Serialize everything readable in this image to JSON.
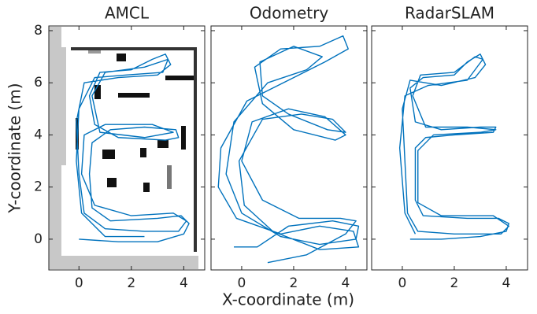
{
  "chart_data": [
    {
      "type": "line",
      "title": "AMCL",
      "ylabel": "Y-coordinate (m)",
      "xlim": [
        -1.15,
        4.8
      ],
      "ylim": [
        -1.18,
        8.18
      ],
      "xticks": [
        0,
        2,
        4
      ],
      "yticks": [
        0,
        2,
        4,
        6,
        8
      ],
      "series": [
        {
          "color": "#0072bd",
          "x": [
            0,
            1.5,
            3,
            4,
            4.2,
            3.9,
            3,
            1.2,
            0.5,
            0.4,
            0.5,
            1.2,
            2.5,
            3.7,
            3.8,
            3.3,
            1.5,
            0.6,
            0.4,
            0.8,
            2,
            2.8,
            3.3,
            3.5,
            3,
            1.5,
            0.2,
            -0.1,
            0,
            0.2,
            1,
            2.5,
            3.8,
            4.1,
            3.6,
            2,
            0.6,
            0.1,
            0.2,
            1,
            2.8,
            3.6,
            2.5,
            0.8,
            0.5,
            1,
            2.5,
            3.4,
            3.2,
            1.8,
            0.6,
            0,
            -0.1,
            0.1,
            1,
            2.5
          ],
          "y": [
            0,
            -0.1,
            -0.1,
            0.2,
            0.6,
            0.9,
            0.8,
            0.7,
            1.2,
            2.5,
            3.7,
            4.2,
            4.3,
            4.2,
            3.9,
            3.8,
            3.9,
            4.4,
            5.5,
            6.4,
            6.5,
            6.9,
            7.1,
            6.7,
            6.3,
            6.2,
            6,
            4.5,
            2.5,
            1,
            0.4,
            0.3,
            0.3,
            0.7,
            1,
            0.9,
            1.3,
            2.5,
            4,
            4.4,
            4.4,
            4.1,
            3.9,
            4.1,
            5.5,
            6.4,
            6.6,
            6.9,
            6.4,
            6.3,
            6.2,
            5,
            3,
            1,
            0.1,
            0.1
          ]
        }
      ]
    },
    {
      "type": "line",
      "title": "Odometry",
      "xlabel": "X-coordinate (m)",
      "xlim": [
        -1.18,
        4.82
      ],
      "ylim": [
        -1.18,
        8.18
      ],
      "xticks": [
        0,
        2,
        4
      ],
      "yticks": [
        0,
        2,
        4,
        6,
        8
      ],
      "series": [
        {
          "color": "#0072bd",
          "x": [
            1,
            2.5,
            4,
            4.4,
            3.8,
            2.2,
            0.8,
            0,
            0.4,
            1.8,
            3.2,
            4,
            3.6,
            2,
            0.8,
            0.5,
            1.5,
            3,
            3.9,
            4.1,
            3.2,
            2,
            0.2,
            -0.8,
            -0.9,
            -0.2,
            1.5,
            3,
            4.3,
            4.5,
            3,
            1.2,
            0.1,
            -0.1,
            0.8,
            2.3,
            3.5,
            4,
            3.3,
            1.8,
            0.8,
            0.7,
            2,
            3.1,
            2.5,
            1,
            -0.3,
            -0.6,
            0,
            1.5,
            3,
            4.4,
            4.5,
            3.5,
            1.8,
            0.6,
            -0.3
          ],
          "y": [
            -0.9,
            -0.6,
            0.2,
            0.7,
            0.8,
            0.8,
            1.5,
            3,
            4.5,
            5,
            4.7,
            4,
            3.8,
            4.2,
            5.2,
            6.6,
            7.3,
            7.4,
            7.8,
            7.3,
            6.8,
            6.2,
            5.3,
            3.5,
            2,
            0.8,
            0.2,
            0.5,
            0.3,
            -0.3,
            -0.4,
            0.3,
            1.3,
            3,
            4.6,
            4.8,
            4.6,
            4.1,
            4.2,
            4.8,
            5.5,
            6.8,
            7.4,
            7,
            6.5,
            6,
            4.5,
            2.5,
            1,
            0.1,
            -0.2,
            0,
            0.5,
            0.7,
            0.5,
            -0.3,
            -0.3
          ]
        }
      ]
    },
    {
      "type": "line",
      "title": "RadarSLAM",
      "xlim": [
        -1.18,
        4.82
      ],
      "ylim": [
        -1.18,
        8.18
      ],
      "xticks": [
        0,
        2,
        4
      ],
      "yticks": [
        0,
        2,
        4,
        6,
        8
      ],
      "series": [
        {
          "color": "#0072bd",
          "x": [
            0.3,
            1.5,
            3,
            4,
            4.1,
            3.7,
            2.5,
            0.8,
            0.5,
            0.5,
            0.9,
            2,
            3.5,
            3.6,
            3,
            1.5,
            0.5,
            0.3,
            0.8,
            2,
            2.5,
            3,
            3.2,
            2.8,
            1.5,
            0.3,
            0,
            0.1,
            0.2,
            0.6,
            2,
            3.8,
            4.1,
            3.5,
            1.5,
            0.6,
            0.6,
            1.2,
            3,
            3.6,
            2.5,
            0.9,
            0.4,
            0.7,
            2,
            2.8,
            3.1,
            2.5,
            1,
            0.1,
            -0.1,
            0.1,
            0.5
          ],
          "y": [
            0,
            0,
            0.1,
            0.3,
            0.6,
            0.8,
            0.8,
            0.9,
            1.5,
            3.5,
            3.9,
            4,
            4.1,
            4.3,
            4.3,
            4.2,
            4.5,
            5.8,
            6.2,
            6.3,
            6.8,
            7.1,
            6.7,
            6.2,
            5.9,
            6.1,
            5,
            3,
            1,
            0.3,
            0.2,
            0.2,
            0.5,
            0.9,
            0.9,
            1.4,
            3.4,
            4,
            4.1,
            4.2,
            4.3,
            4.3,
            5.5,
            6.3,
            6.4,
            7,
            6.9,
            6.1,
            5.9,
            5.5,
            3.5,
            1,
            0.2
          ]
        }
      ]
    }
  ]
}
